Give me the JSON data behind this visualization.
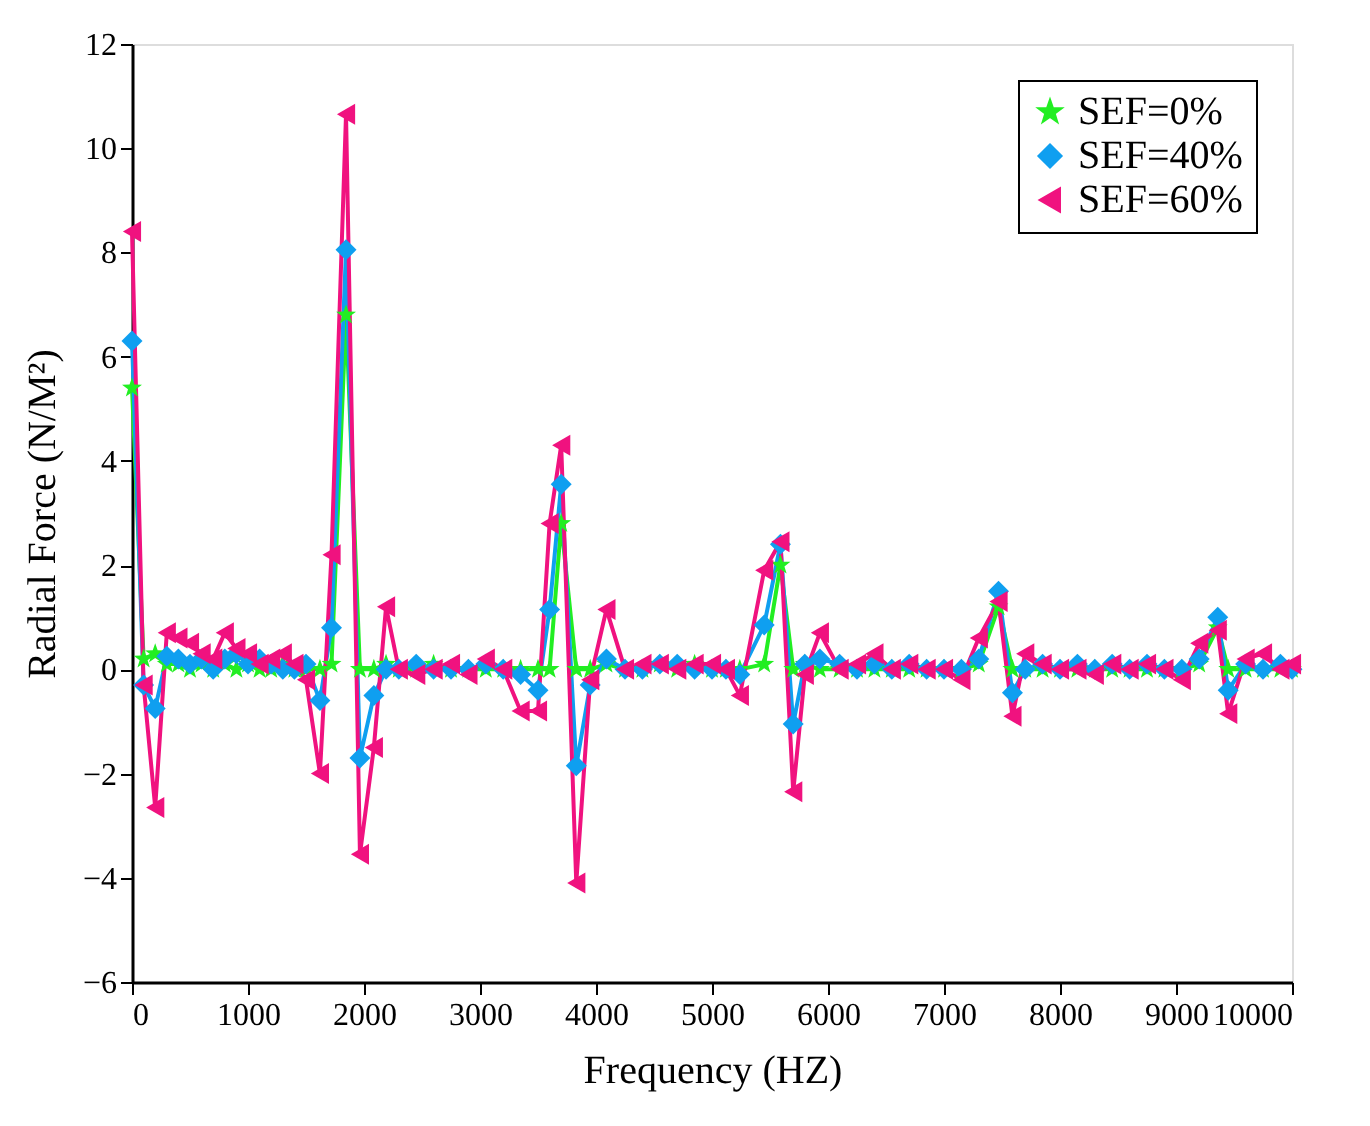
{
  "chart_data": {
    "type": "line",
    "xlabel": "Frequency (HZ)",
    "ylabel": "Radial Force (N/M²)",
    "x": [
      0,
      100,
      200,
      300,
      400,
      500,
      600,
      700,
      800,
      900,
      1000,
      1100,
      1200,
      1300,
      1400,
      1500,
      1620,
      1720,
      1845,
      1965,
      2085,
      2190,
      2300,
      2450,
      2600,
      2750,
      2900,
      3050,
      3200,
      3350,
      3500,
      3600,
      3700,
      3830,
      3950,
      4090,
      4250,
      4400,
      4550,
      4700,
      4850,
      5000,
      5120,
      5240,
      5450,
      5590,
      5700,
      5800,
      5930,
      6100,
      6250,
      6400,
      6550,
      6700,
      6850,
      7000,
      7150,
      7300,
      7470,
      7590,
      7700,
      7850,
      8000,
      8150,
      8300,
      8450,
      8600,
      8750,
      8900,
      9050,
      9200,
      9360,
      9450,
      9600,
      9750,
      9900,
      10000
    ],
    "series": [
      {
        "name": "SEF=0%",
        "color": "#22ee22",
        "marker": "star",
        "values": [
          5.4,
          0.2,
          0.3,
          0.1,
          0.1,
          0.0,
          0.1,
          0.0,
          0.1,
          0.0,
          0.1,
          0.0,
          0.0,
          0.1,
          0.0,
          0.0,
          0.0,
          0.1,
          6.8,
          0.0,
          0.0,
          0.1,
          0.0,
          0.0,
          0.1,
          0.0,
          0.0,
          0.0,
          0.0,
          0.0,
          0.0,
          0.0,
          2.8,
          0.0,
          0.0,
          0.1,
          0.0,
          0.0,
          0.1,
          0.0,
          0.1,
          0.0,
          0.0,
          0.0,
          0.1,
          2.0,
          0.0,
          0.1,
          0.0,
          0.0,
          0.0,
          0.0,
          0.0,
          0.0,
          0.0,
          0.0,
          0.0,
          0.1,
          1.2,
          0.0,
          0.0,
          0.0,
          0.0,
          0.0,
          0.0,
          0.0,
          0.0,
          0.0,
          0.0,
          0.0,
          0.1,
          0.8,
          0.0,
          0.0,
          0.0,
          0.0,
          0.0
        ]
      },
      {
        "name": "SEF=40%",
        "color": "#0f9ff0",
        "marker": "diamond",
        "values": [
          6.3,
          -0.3,
          -0.75,
          0.25,
          0.2,
          0.1,
          0.2,
          0.0,
          0.2,
          0.3,
          0.1,
          0.2,
          0.1,
          0.0,
          0.0,
          0.1,
          -0.6,
          0.8,
          8.05,
          -1.7,
          -0.5,
          0.0,
          0.0,
          0.1,
          0.0,
          0.0,
          0.0,
          0.1,
          0.0,
          -0.1,
          -0.4,
          1.15,
          3.55,
          -1.85,
          -0.3,
          0.2,
          0.0,
          0.0,
          0.1,
          0.1,
          0.0,
          0.0,
          0.0,
          -0.1,
          0.85,
          2.4,
          -1.05,
          0.1,
          0.2,
          0.1,
          0.0,
          0.1,
          0.0,
          0.1,
          0.0,
          0.0,
          0.0,
          0.2,
          1.5,
          -0.45,
          0.0,
          0.1,
          0.0,
          0.1,
          0.0,
          0.1,
          0.0,
          0.1,
          0.0,
          0.0,
          0.2,
          1.0,
          -0.4,
          0.1,
          0.0,
          0.1,
          0.0
        ]
      },
      {
        "name": "SEF=60%",
        "color": "#f0127f",
        "marker": "triangle",
        "values": [
          8.4,
          -0.3,
          -2.65,
          0.7,
          0.6,
          0.5,
          0.3,
          0.2,
          0.7,
          0.4,
          0.3,
          0.1,
          0.2,
          0.3,
          0.1,
          -0.2,
          -2.0,
          2.2,
          10.65,
          -3.55,
          -1.5,
          1.2,
          0.0,
          -0.1,
          0.0,
          0.1,
          -0.1,
          0.2,
          0.0,
          -0.8,
          -0.8,
          2.8,
          4.3,
          -4.1,
          -0.2,
          1.15,
          0.0,
          0.1,
          0.1,
          0.0,
          0.1,
          0.1,
          0.0,
          -0.5,
          1.9,
          2.45,
          -2.35,
          -0.1,
          0.7,
          0.0,
          0.1,
          0.3,
          0.0,
          0.1,
          0.0,
          0.0,
          -0.2,
          0.6,
          1.3,
          -0.9,
          0.3,
          0.1,
          0.0,
          0.0,
          -0.1,
          0.1,
          0.0,
          0.1,
          0.0,
          -0.2,
          0.5,
          0.75,
          -0.85,
          0.2,
          0.3,
          0.0,
          0.1
        ]
      }
    ],
    "xlim": [
      0,
      10000
    ],
    "xticks": [
      0,
      1000,
      2000,
      3000,
      4000,
      5000,
      6000,
      7000,
      8000,
      9000,
      10000
    ],
    "ylim": [
      -6,
      12
    ],
    "yticks": [
      -6,
      -4,
      -2,
      0,
      2,
      4,
      6,
      8,
      10,
      12
    ],
    "grid": false,
    "legend": "top right",
    "line_style": "solid"
  }
}
